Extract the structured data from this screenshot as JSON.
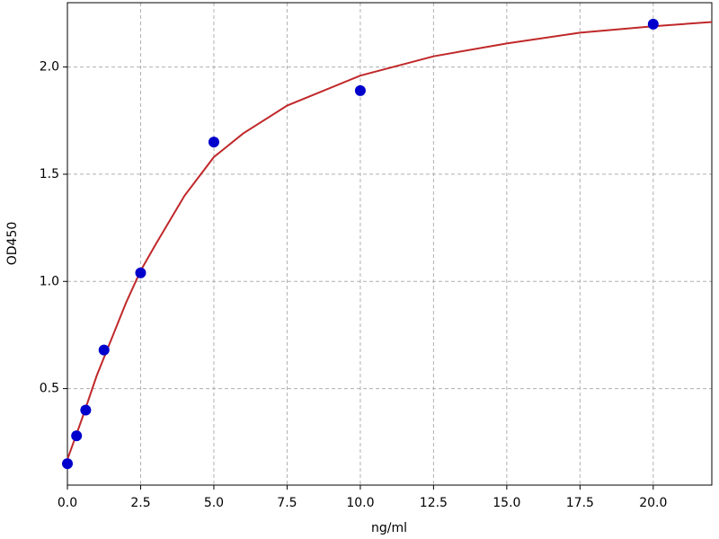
{
  "chart_data": {
    "type": "scatter",
    "x_label": "ng/ml",
    "y_label": "OD450",
    "xlim": [
      0,
      22
    ],
    "ylim": [
      0.05,
      2.3
    ],
    "xticks": [
      {
        "value": 0,
        "label": "0.0"
      },
      2.5,
      {
        "value": 5,
        "label": "5.0"
      },
      7.5,
      {
        "value": 10,
        "label": "10.0"
      },
      12.5,
      {
        "value": 15,
        "label": "15.0"
      },
      17.5,
      {
        "value": 20,
        "label": "20.0"
      }
    ],
    "yticks": [
      0.5,
      {
        "value": 1,
        "label": "1.0"
      },
      1.5,
      {
        "value": 2,
        "label": "2.0"
      }
    ],
    "grid": true,
    "series": [
      {
        "type": "scatter",
        "color": "#0000cc",
        "x": [
          0,
          0.3125,
          0.625,
          1.25,
          2.5,
          5,
          10,
          20
        ],
        "values": [
          0.15,
          0.28,
          0.4,
          0.68,
          1.04,
          1.65,
          1.89,
          2.2
        ]
      },
      {
        "type": "line",
        "color": "#c0282a",
        "x": [
          0,
          0.5,
          1,
          1.5,
          2,
          2.5,
          3,
          4,
          5,
          6,
          7.5,
          10,
          12.5,
          15,
          17.5,
          20,
          22
        ],
        "values": [
          0.17,
          0.36,
          0.56,
          0.73,
          0.9,
          1.05,
          1.17,
          1.4,
          1.58,
          1.69,
          1.82,
          1.96,
          2.05,
          2.11,
          2.16,
          2.19,
          2.21
        ]
      }
    ]
  }
}
